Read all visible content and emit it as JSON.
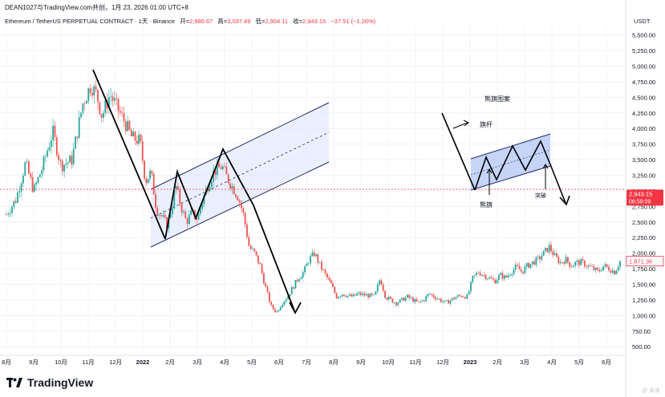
{
  "header": {
    "publisher_line": "DEAN1027与TradingView.com共创，1月 23, 2026 01:00 UTC+8",
    "symbol_line": "Ethereum / TetherUS PERPETUAL CONTRACT · 1天 · Binance",
    "ohlc": [
      {
        "label": "开=",
        "value": "2,980.67"
      },
      {
        "label": "高=",
        "value": "3,037.49"
      },
      {
        "label": "低=",
        "value": "2,904.11"
      },
      {
        "label": "收=",
        "value": "2,943.15"
      }
    ],
    "change": "−37.51 (−1.26%)"
  },
  "brand": {
    "name": "TradingView"
  },
  "watermark": "@ 米米",
  "colors": {
    "up": "#26a69a",
    "down": "#ef5350",
    "channel": "#1f2a6b",
    "channel_fill": "#dde6ff",
    "price_line": "#f23645"
  },
  "chart_data": {
    "type": "candlestick",
    "currency": "USDT",
    "ylim": [
      400,
      5650
    ],
    "y_ticks": [
      "5,500.00",
      "5,250.00",
      "5,000.00",
      "4,750.00",
      "4,500.00",
      "4,250.00",
      "4,000.00",
      "3,750.00",
      "3,500.00",
      "3,250.00",
      "3,000.00",
      "2,750.00",
      "2,500.00",
      "2,250.00",
      "2,000.00",
      "1,750.00",
      "1,500.00",
      "1,250.00",
      "1,000.00",
      "750.00",
      "500.00"
    ],
    "x_ticks": [
      "8月",
      "9月",
      "10月",
      "11月",
      "12月",
      "2022",
      "2月",
      "3月",
      "4月",
      "5月",
      "6月",
      "7月",
      "8月",
      "9月",
      "10月",
      "11月",
      "12月",
      "2023",
      "2月",
      "3月",
      "4月",
      "5月",
      "6月"
    ],
    "price_labels": [
      {
        "value": "2,943.15",
        "sub": "06:59:09"
      },
      {
        "value": "1,871.36"
      }
    ],
    "current_price": 2943.15,
    "prior_price": 1871.36,
    "price_path": [
      [
        0,
        2620
      ],
      [
        0.35,
        2860
      ],
      [
        0.7,
        3450
      ],
      [
        1.0,
        3000
      ],
      [
        1.3,
        3350
      ],
      [
        1.7,
        3950
      ],
      [
        2.0,
        3400
      ],
      [
        2.4,
        3500
      ],
      [
        2.8,
        4400
      ],
      [
        3.1,
        4700
      ],
      [
        3.3,
        4550
      ],
      [
        3.5,
        4200
      ],
      [
        3.8,
        4550
      ],
      [
        4.1,
        4300
      ],
      [
        4.4,
        4050
      ],
      [
        4.6,
        3850
      ],
      [
        4.9,
        3800
      ],
      [
        5.1,
        3150
      ],
      [
        5.3,
        3300
      ],
      [
        5.5,
        2700
      ],
      [
        5.75,
        2550
      ],
      [
        5.9,
        2450
      ],
      [
        6.1,
        2800
      ],
      [
        6.2,
        3100
      ],
      [
        6.4,
        2750
      ],
      [
        6.6,
        2500
      ],
      [
        6.8,
        2650
      ],
      [
        7.0,
        2550
      ],
      [
        7.3,
        3000
      ],
      [
        7.6,
        3300
      ],
      [
        7.9,
        3400
      ],
      [
        8.1,
        3200
      ],
      [
        8.3,
        3050
      ],
      [
        8.5,
        2900
      ],
      [
        8.7,
        2600
      ],
      [
        8.9,
        2100
      ],
      [
        9.1,
        2000
      ],
      [
        9.3,
        1800
      ],
      [
        9.5,
        1450
      ],
      [
        9.7,
        1150
      ],
      [
        9.9,
        1050
      ],
      [
        10.1,
        1200
      ],
      [
        10.3,
        1300
      ],
      [
        10.5,
        1450
      ],
      [
        10.7,
        1600
      ],
      [
        10.9,
        1700
      ],
      [
        11.1,
        1900
      ],
      [
        11.3,
        2000
      ],
      [
        11.5,
        1800
      ],
      [
        11.7,
        1650
      ],
      [
        11.9,
        1500
      ],
      [
        12.1,
        1300
      ],
      [
        12.3,
        1350
      ],
      [
        12.5,
        1320
      ],
      [
        12.7,
        1300
      ],
      [
        12.9,
        1350
      ],
      [
        13.1,
        1330
      ],
      [
        13.3,
        1320
      ],
      [
        13.5,
        1300
      ],
      [
        13.7,
        1600
      ],
      [
        13.9,
        1300
      ],
      [
        14.1,
        1250
      ],
      [
        14.3,
        1200
      ],
      [
        14.5,
        1250
      ],
      [
        14.7,
        1300
      ],
      [
        14.9,
        1250
      ],
      [
        15.1,
        1200
      ],
      [
        15.3,
        1250
      ],
      [
        15.5,
        1350
      ],
      [
        15.7,
        1300
      ],
      [
        15.9,
        1250
      ],
      [
        16.1,
        1200
      ],
      [
        16.3,
        1250
      ],
      [
        16.5,
        1300
      ],
      [
        16.7,
        1320
      ],
      [
        16.9,
        1300
      ],
      [
        17.1,
        1600
      ],
      [
        17.3,
        1700
      ],
      [
        17.5,
        1650
      ],
      [
        17.7,
        1600
      ],
      [
        17.9,
        1550
      ],
      [
        18.1,
        1650
      ],
      [
        18.3,
        1600
      ],
      [
        18.5,
        1700
      ],
      [
        18.7,
        1780
      ],
      [
        18.9,
        1700
      ],
      [
        19.1,
        1800
      ],
      [
        19.3,
        1850
      ],
      [
        19.5,
        1900
      ],
      [
        19.7,
        2000
      ],
      [
        19.9,
        2100
      ],
      [
        20.1,
        1950
      ],
      [
        20.3,
        1850
      ],
      [
        20.5,
        1900
      ],
      [
        20.7,
        1800
      ],
      [
        20.9,
        1850
      ],
      [
        21.1,
        1850
      ],
      [
        21.3,
        1800
      ],
      [
        21.5,
        1750
      ],
      [
        21.7,
        1700
      ],
      [
        21.9,
        1800
      ],
      [
        22.1,
        1750
      ],
      [
        22.3,
        1700
      ],
      [
        22.5,
        1871.36
      ]
    ],
    "annotations": {
      "title": "熊旗图案",
      "flagpole_label": "旗杆",
      "bear_flag_label": "熊旗",
      "breakout_label": "突破"
    }
  }
}
